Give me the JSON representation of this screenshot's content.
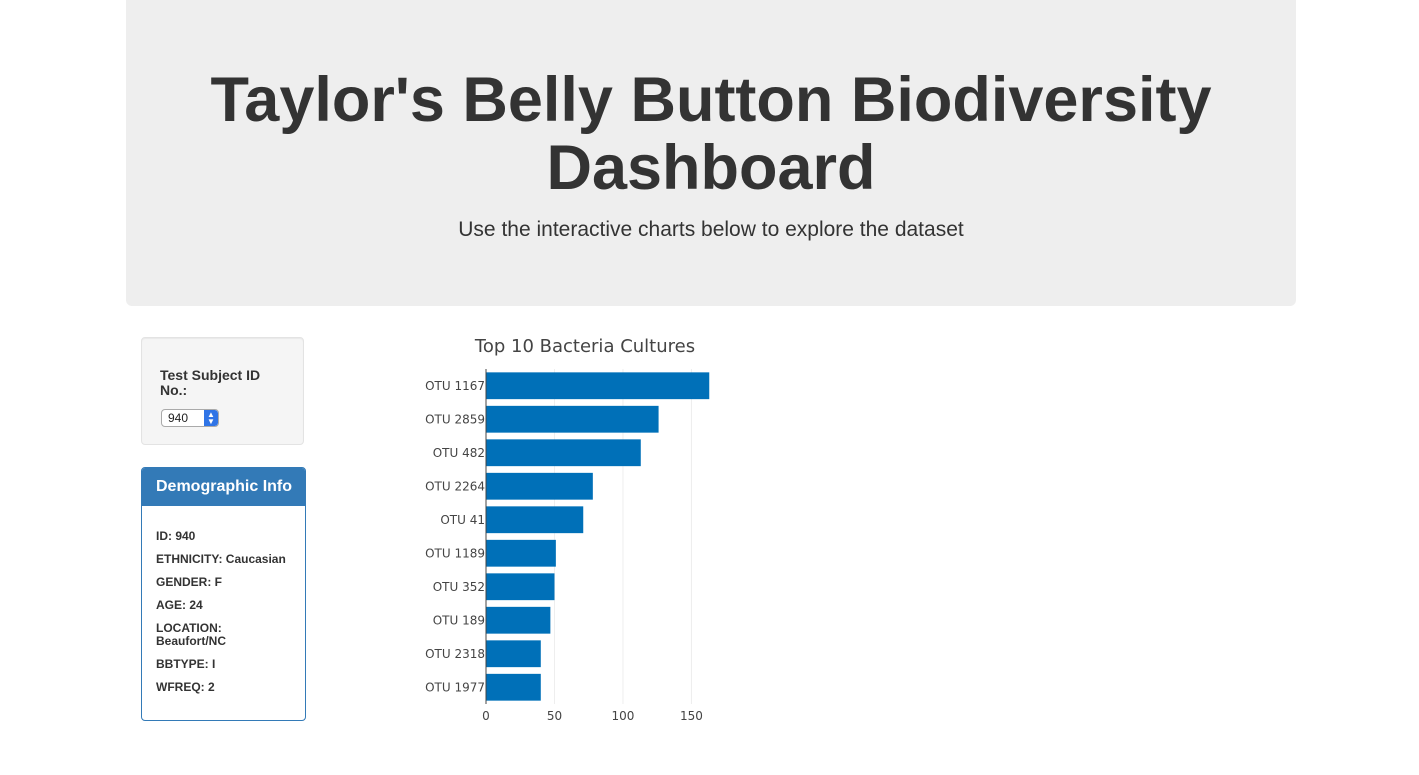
{
  "header": {
    "title": "Taylor's Belly Button Biodiversity Dashboard",
    "subtitle": "Use the interactive charts below to explore the dataset"
  },
  "selector": {
    "label": "Test Subject ID No.:",
    "selected_value": "940"
  },
  "demographics": {
    "heading": "Demographic Info",
    "rows": [
      "ID: 940",
      "ETHNICITY: Caucasian",
      "GENDER: F",
      "AGE: 24",
      "LOCATION: Beaufort/NC",
      "BBTYPE: I",
      "WFREQ: 2"
    ]
  },
  "colors": {
    "bar": "#0070b8",
    "panel_primary": "#337ab7",
    "jumbotron_bg": "#eeeeee"
  },
  "chart_data": {
    "type": "bar",
    "orientation": "horizontal",
    "title": "Top 10 Bacteria Cultures",
    "xlabel": "",
    "ylabel": "",
    "categories": [
      "OTU 1167",
      "OTU 2859",
      "OTU 482",
      "OTU 2264",
      "OTU 41",
      "OTU 1189",
      "OTU 352",
      "OTU 189",
      "OTU 2318",
      "OTU 1977"
    ],
    "values": [
      163,
      126,
      113,
      78,
      71,
      51,
      50,
      47,
      40,
      40
    ],
    "xlim": [
      0,
      165
    ],
    "xticks": [
      0,
      50,
      100,
      150
    ],
    "grid": true
  }
}
